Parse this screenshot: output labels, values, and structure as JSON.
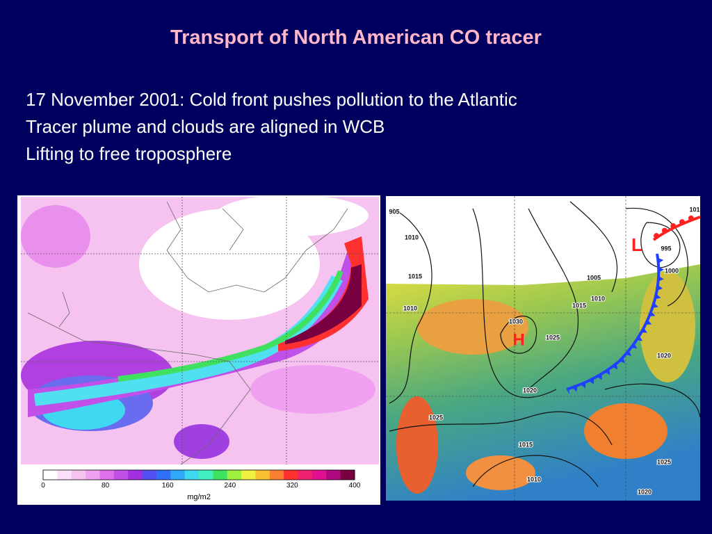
{
  "title": "Transport of North American CO tracer",
  "lines": [
    "17 November 2001: Cold front pushes pollution to the Atlantic",
    "Tracer plume and clouds are aligned in WCB",
    "Lifting to free troposphere"
  ],
  "colorbar": {
    "ticks": [
      0,
      80,
      160,
      240,
      320,
      400
    ],
    "unit": "mg/m2"
  },
  "weather_map": {
    "high": "H",
    "low": "L",
    "isobar_labels": [
      "905",
      "1010",
      "1015",
      "1010",
      "1030",
      "1025",
      "1005",
      "1010",
      "1015",
      "995",
      "1000",
      "1020",
      "1020",
      "1025",
      "1015",
      "1010",
      "1025",
      "1020",
      "101"
    ]
  }
}
